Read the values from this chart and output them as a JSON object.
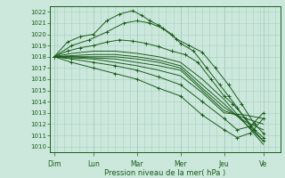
{
  "xlabel": "Pression niveau de la mer( hPa )",
  "ylim": [
    1009.5,
    1022.5
  ],
  "xlim": [
    0,
    5.3
  ],
  "yticks": [
    1010,
    1011,
    1012,
    1013,
    1014,
    1015,
    1016,
    1017,
    1018,
    1019,
    1020,
    1021,
    1022
  ],
  "xtick_positions": [
    0.1,
    1.0,
    2.0,
    3.0,
    4.0,
    4.9
  ],
  "xtick_labels": [
    "Dim",
    "Lun",
    "Mar",
    "Mer",
    "Jeu",
    "Ve"
  ],
  "day_lines": [
    0.1,
    1.0,
    2.0,
    3.0,
    4.0,
    4.9
  ],
  "bg_color": "#cce8dc",
  "grid_color": "#a8cfc0",
  "line_color": "#1a5c1a",
  "lines": [
    {
      "x": [
        0.1,
        0.4,
        0.7,
        1.0,
        1.3,
        1.6,
        1.9,
        2.1,
        2.3,
        2.5,
        2.8,
        3.0,
        3.3,
        3.6,
        3.9,
        4.1,
        4.3,
        4.6,
        4.9
      ],
      "y": [
        1018.0,
        1019.3,
        1019.8,
        1020.0,
        1021.2,
        1021.8,
        1022.1,
        1021.7,
        1021.2,
        1020.8,
        1020.0,
        1019.2,
        1018.5,
        1017.0,
        1015.5,
        1014.5,
        1013.5,
        1011.8,
        1010.5
      ],
      "marker": true
    },
    {
      "x": [
        0.1,
        0.5,
        0.9,
        1.3,
        1.7,
        2.0,
        2.3,
        2.6,
        2.9,
        3.2,
        3.5,
        3.8,
        4.1,
        4.4,
        4.7,
        4.9
      ],
      "y": [
        1018.0,
        1019.0,
        1019.5,
        1020.2,
        1021.0,
        1021.2,
        1021.0,
        1020.5,
        1019.6,
        1019.0,
        1018.4,
        1017.0,
        1015.5,
        1013.8,
        1012.0,
        1011.2
      ],
      "marker": true
    },
    {
      "x": [
        0.1,
        0.4,
        0.7,
        1.0,
        1.3,
        1.6,
        1.9,
        2.2,
        2.5,
        2.8,
        3.1,
        3.4,
        3.7,
        4.0,
        4.2,
        4.5,
        4.7,
        4.9
      ],
      "y": [
        1018.0,
        1018.5,
        1018.8,
        1019.0,
        1019.3,
        1019.5,
        1019.4,
        1019.2,
        1018.9,
        1018.5,
        1018.2,
        1017.5,
        1016.0,
        1014.5,
        1013.8,
        1012.5,
        1011.5,
        1010.8
      ],
      "marker": true
    },
    {
      "x": [
        0.1,
        0.5,
        1.0,
        1.5,
        2.0,
        2.5,
        3.0,
        3.5,
        4.0,
        4.5,
        4.9
      ],
      "y": [
        1018.0,
        1018.3,
        1018.5,
        1018.5,
        1018.3,
        1018.0,
        1017.5,
        1016.0,
        1014.2,
        1012.0,
        1010.2
      ],
      "marker": false
    },
    {
      "x": [
        0.1,
        0.5,
        1.0,
        1.5,
        2.0,
        2.5,
        3.0,
        3.5,
        4.0,
        4.5,
        4.9
      ],
      "y": [
        1018.0,
        1018.1,
        1018.2,
        1018.2,
        1018.0,
        1017.7,
        1017.2,
        1015.5,
        1013.8,
        1012.0,
        1010.5
      ],
      "marker": false
    },
    {
      "x": [
        0.1,
        0.5,
        1.0,
        1.5,
        2.0,
        2.5,
        3.0,
        3.5,
        4.0,
        4.5,
        4.9
      ],
      "y": [
        1018.0,
        1018.0,
        1018.0,
        1018.0,
        1017.8,
        1017.5,
        1017.0,
        1015.2,
        1013.5,
        1012.2,
        1011.5
      ],
      "marker": false
    },
    {
      "x": [
        0.1,
        0.5,
        1.0,
        1.5,
        2.0,
        2.5,
        3.0,
        3.5,
        4.0,
        4.5,
        4.9
      ],
      "y": [
        1018.0,
        1018.0,
        1017.9,
        1017.8,
        1017.5,
        1017.2,
        1016.8,
        1015.0,
        1013.2,
        1012.5,
        1012.0
      ],
      "marker": false
    },
    {
      "x": [
        0.1,
        0.5,
        1.0,
        1.5,
        2.0,
        2.5,
        3.0,
        3.5,
        4.0,
        4.5,
        4.9
      ],
      "y": [
        1018.0,
        1017.9,
        1017.8,
        1017.5,
        1017.2,
        1016.8,
        1016.3,
        1014.8,
        1013.0,
        1012.8,
        1012.5
      ],
      "marker": false
    },
    {
      "x": [
        0.1,
        0.5,
        1.0,
        1.5,
        2.0,
        2.5,
        3.0,
        3.5,
        4.0,
        4.3,
        4.6,
        4.9
      ],
      "y": [
        1018.0,
        1017.8,
        1017.5,
        1017.2,
        1016.8,
        1016.2,
        1015.5,
        1014.0,
        1012.5,
        1011.5,
        1011.8,
        1013.0
      ],
      "marker": true
    },
    {
      "x": [
        0.1,
        0.5,
        1.0,
        1.5,
        2.0,
        2.5,
        3.0,
        3.5,
        4.0,
        4.3,
        4.6,
        4.9
      ],
      "y": [
        1018.0,
        1017.5,
        1017.0,
        1016.5,
        1016.0,
        1015.2,
        1014.5,
        1012.8,
        1011.5,
        1010.8,
        1011.2,
        1012.5
      ],
      "marker": true
    }
  ]
}
